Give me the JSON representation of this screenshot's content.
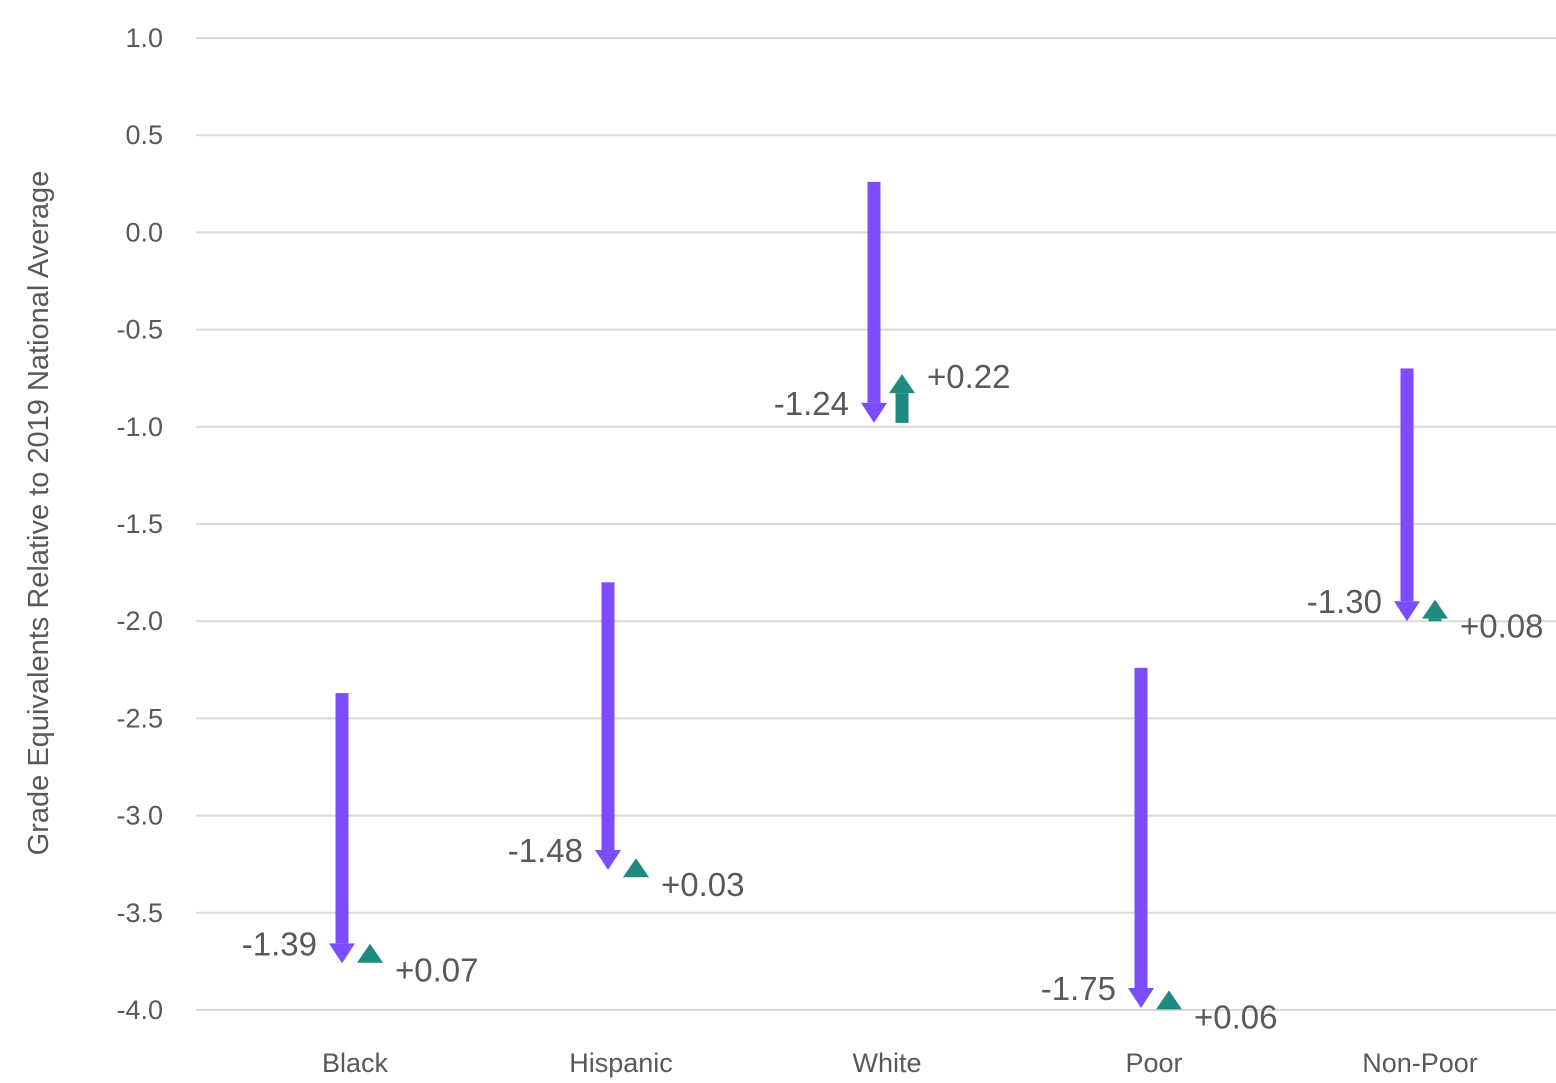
{
  "chart_data": {
    "type": "arrow",
    "title": "",
    "xlabel": "",
    "ylabel": "Grade Equivalents Relative to 2019 National Average",
    "ylim": [
      -4.0,
      1.0
    ],
    "yticks": [
      1.0,
      0.5,
      0.0,
      -0.5,
      -1.0,
      -1.5,
      -2.0,
      -2.5,
      -3.0,
      -3.5,
      -4.0
    ],
    "ytick_labels": [
      "1.0",
      "0.5",
      "0.0",
      "-0.5",
      "-1.0",
      "-1.5",
      "-2.0",
      "-2.5",
      "-3.0",
      "-3.5",
      "-4.0"
    ],
    "categories": [
      "Black",
      "Hispanic",
      "White",
      "Poor",
      "Non-Poor"
    ],
    "series": [
      {
        "values_start": [
          -2.37,
          -1.8,
          0.26,
          -2.24,
          -0.7
        ],
        "values_end": [
          -3.76,
          -3.28,
          -0.98,
          -3.99,
          -2.0
        ],
        "labels": [
          "-1.39",
          "-1.48",
          "-1.24",
          "-1.75",
          "-1.30"
        ],
        "color": "#7c4dff"
      },
      {
        "values_start": [
          -3.76,
          -3.28,
          -0.98,
          -3.99,
          -2.0
        ],
        "values_end": [
          -3.69,
          -3.25,
          -0.76,
          -3.93,
          -1.92
        ],
        "labels": [
          "+0.07",
          "+0.03",
          "+0.22",
          "+0.06",
          "+0.08"
        ],
        "color": "#1f8a80"
      }
    ],
    "grid": true,
    "legend": "none"
  }
}
